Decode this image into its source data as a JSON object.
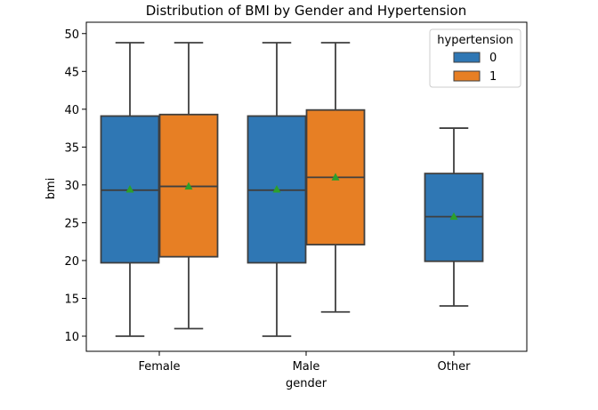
{
  "chart_data": {
    "type": "box",
    "title": "Distribution of BMI by Gender and Hypertension",
    "xlabel": "gender",
    "ylabel": "bmi",
    "categories": [
      "Female",
      "Male",
      "Other"
    ],
    "ylim": [
      8.0,
      51.5
    ],
    "yticks": [
      10,
      15,
      20,
      25,
      30,
      35,
      40,
      45,
      50
    ],
    "show_means": true,
    "legend": {
      "title": "hypertension",
      "placement": "top-right"
    },
    "series": [
      {
        "name": "0",
        "color": "#2f77b4",
        "boxes": [
          {
            "category": "Female",
            "whislo": 10.0,
            "q1": 19.7,
            "median": 29.3,
            "q3": 39.1,
            "whishi": 48.8,
            "mean": 29.4
          },
          {
            "category": "Male",
            "whislo": 10.0,
            "q1": 19.7,
            "median": 29.3,
            "q3": 39.1,
            "whishi": 48.8,
            "mean": 29.4
          },
          {
            "category": "Other",
            "whislo": 14.0,
            "q1": 19.9,
            "median": 25.8,
            "q3": 31.5,
            "whishi": 37.5,
            "mean": 25.8
          }
        ]
      },
      {
        "name": "1",
        "color": "#e77f24",
        "boxes": [
          {
            "category": "Female",
            "whislo": 11.0,
            "q1": 20.5,
            "median": 29.8,
            "q3": 39.3,
            "whishi": 48.8,
            "mean": 29.8
          },
          {
            "category": "Male",
            "whislo": 13.2,
            "q1": 22.1,
            "median": 31.0,
            "q3": 39.9,
            "whishi": 48.8,
            "mean": 31.0
          }
        ]
      }
    ],
    "mean_marker_color": "#2ca02c",
    "line_color": "#3f3f3f"
  }
}
